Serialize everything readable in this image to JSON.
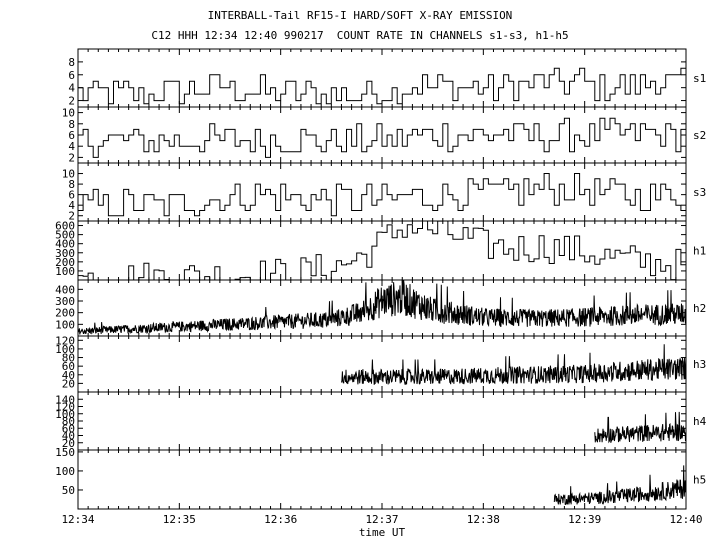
{
  "header": {
    "title": "INTERBALL-Tail RF15-I HARD/SOFT X-RAY EMISSION",
    "subtitle": "C12 HHH 12:34 12:40 990217  COUNT RATE IN CHANNELS s1-s3, h1-h5"
  },
  "xaxis": {
    "label": "time UT",
    "range": [
      "12:34",
      "12:40"
    ],
    "ticks": [
      "12:34",
      "12:35",
      "12:36",
      "12:37",
      "12:38",
      "12:39",
      "12:40"
    ]
  },
  "chart_data": {
    "type": "line",
    "title": "INTERBALL-Tail RF15-I HARD/SOFT X-RAY EMISSION",
    "subtitle": "C12 HHH 12:34 12:40 990217  COUNT RATE IN CHANNELS s1-s3, h1-h5",
    "xlabel": "time UT",
    "xlim": [
      "12:34",
      "12:40"
    ],
    "grid": false,
    "panels": [
      {
        "name": "s1",
        "ylim": [
          1,
          10
        ],
        "yticks": [
          "2",
          "4",
          "6",
          "8"
        ],
        "style": "step",
        "x_min": [
          0,
          0.8,
          1.4,
          1.9,
          2.4,
          2.8,
          3.3,
          3.8,
          4.2,
          4.8,
          5.3,
          5.7,
          6
        ],
        "values": [
          3,
          3,
          4,
          3,
          3,
          3,
          4,
          4,
          4,
          5,
          4,
          5,
          4
        ]
      },
      {
        "name": "s2",
        "ylim": [
          1,
          11
        ],
        "yticks": [
          "2",
          "4",
          "6",
          "8",
          "10"
        ],
        "style": "step",
        "x_min": [
          0,
          0.6,
          1.2,
          1.8,
          2.4,
          3.0,
          3.5,
          4.0,
          4.5,
          5.0,
          5.5,
          6
        ],
        "values": [
          5,
          5,
          5,
          5,
          5,
          5,
          6,
          6,
          6,
          6,
          6,
          6
        ]
      },
      {
        "name": "s3",
        "ylim": [
          1,
          12
        ],
        "yticks": [
          "2",
          "4",
          "6",
          "8",
          "10"
        ],
        "style": "step",
        "x_min": [
          0,
          0.7,
          1.3,
          1.8,
          2.4,
          3.0,
          3.5,
          4.0,
          4.5,
          5.0,
          5.5,
          6
        ],
        "values": [
          4,
          4,
          5,
          6,
          5,
          5,
          6,
          6,
          7,
          7,
          6,
          6
        ]
      },
      {
        "name": "h1",
        "ylim": [
          0,
          650
        ],
        "yticks": [
          "100",
          "200",
          "300",
          "400",
          "500",
          "600"
        ],
        "style": "step",
        "x_min": [
          0,
          0.5,
          1.0,
          1.5,
          2.0,
          2.3,
          2.6,
          2.8,
          3.0,
          3.2,
          3.4,
          3.6,
          3.8,
          4.0,
          4.3,
          4.6,
          5.0,
          5.3,
          5.6,
          6.0
        ],
        "values": [
          15,
          30,
          40,
          50,
          70,
          100,
          170,
          270,
          430,
          600,
          570,
          520,
          460,
          380,
          350,
          370,
          300,
          240,
          200,
          160
        ]
      },
      {
        "name": "h2",
        "ylim": [
          0,
          480
        ],
        "yticks": [
          "100",
          "200",
          "300",
          "400"
        ],
        "style": "noisy",
        "x_min": [
          0,
          0.5,
          1.0,
          1.5,
          2.0,
          2.5,
          2.8,
          3.0,
          3.2,
          3.5,
          4.0,
          4.5,
          5.0,
          5.5,
          6.0
        ],
        "values": [
          40,
          60,
          80,
          100,
          120,
          140,
          200,
          300,
          330,
          220,
          160,
          150,
          160,
          180,
          190
        ]
      },
      {
        "name": "h3",
        "ylim": [
          0,
          130
        ],
        "yticks": [
          "20",
          "40",
          "60",
          "80",
          "100",
          "120"
        ],
        "style": "noisy",
        "x_min": [
          2.6,
          3.0,
          3.5,
          4.0,
          4.5,
          5.0,
          5.5,
          6.0
        ],
        "values": [
          35,
          35,
          35,
          38,
          40,
          42,
          50,
          55
        ]
      },
      {
        "name": "h4",
        "ylim": [
          0,
          160
        ],
        "yticks": [
          "20",
          "40",
          "60",
          "80",
          "100",
          "120",
          "140"
        ],
        "style": "noisy",
        "x_min": [
          5.1,
          5.5,
          6.0
        ],
        "values": [
          40,
          45,
          50
        ]
      },
      {
        "name": "h5",
        "ylim": [
          0,
          155
        ],
        "yticks": [
          "50",
          "100",
          "150"
        ],
        "style": "noisy",
        "x_min": [
          4.7,
          5.2,
          5.6,
          6.0
        ],
        "values": [
          25,
          30,
          40,
          55
        ]
      }
    ]
  }
}
